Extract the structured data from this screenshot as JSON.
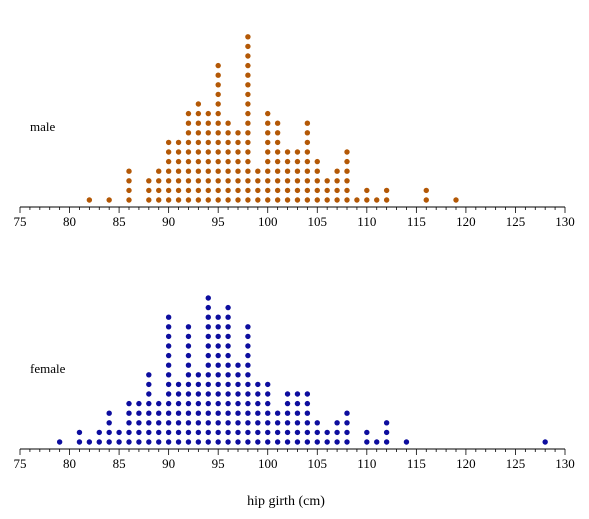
{
  "chart_data": {
    "type": "dot",
    "xlabel": "hip girth (cm)",
    "xlim": [
      75,
      130
    ],
    "xticks": [
      75,
      80,
      85,
      90,
      95,
      100,
      105,
      110,
      115,
      120,
      125,
      130
    ],
    "panels": [
      {
        "label": "male",
        "color": "#b35806",
        "dots": [
          {
            "x": 82,
            "count": 1
          },
          {
            "x": 84,
            "count": 1
          },
          {
            "x": 86,
            "count": 4
          },
          {
            "x": 88,
            "count": 3
          },
          {
            "x": 89,
            "count": 4
          },
          {
            "x": 90,
            "count": 7
          },
          {
            "x": 91,
            "count": 7
          },
          {
            "x": 92,
            "count": 10
          },
          {
            "x": 93,
            "count": 11
          },
          {
            "x": 94,
            "count": 10
          },
          {
            "x": 95,
            "count": 15
          },
          {
            "x": 96,
            "count": 9
          },
          {
            "x": 97,
            "count": 8
          },
          {
            "x": 98,
            "count": 18
          },
          {
            "x": 99,
            "count": 4
          },
          {
            "x": 100,
            "count": 10
          },
          {
            "x": 101,
            "count": 9
          },
          {
            "x": 102,
            "count": 6
          },
          {
            "x": 103,
            "count": 6
          },
          {
            "x": 104,
            "count": 9
          },
          {
            "x": 105,
            "count": 5
          },
          {
            "x": 106,
            "count": 3
          },
          {
            "x": 107,
            "count": 4
          },
          {
            "x": 108,
            "count": 6
          },
          {
            "x": 109,
            "count": 1
          },
          {
            "x": 110,
            "count": 2
          },
          {
            "x": 111,
            "count": 1
          },
          {
            "x": 112,
            "count": 2
          },
          {
            "x": 116,
            "count": 2
          },
          {
            "x": 119,
            "count": 1
          }
        ]
      },
      {
        "label": "female",
        "color": "#0d0d9e",
        "dots": [
          {
            "x": 79,
            "count": 1
          },
          {
            "x": 81,
            "count": 2
          },
          {
            "x": 82,
            "count": 1
          },
          {
            "x": 83,
            "count": 2
          },
          {
            "x": 84,
            "count": 4
          },
          {
            "x": 85,
            "count": 2
          },
          {
            "x": 86,
            "count": 5
          },
          {
            "x": 87,
            "count": 5
          },
          {
            "x": 88,
            "count": 8
          },
          {
            "x": 89,
            "count": 5
          },
          {
            "x": 90,
            "count": 14
          },
          {
            "x": 91,
            "count": 7
          },
          {
            "x": 92,
            "count": 13
          },
          {
            "x": 93,
            "count": 8
          },
          {
            "x": 94,
            "count": 16
          },
          {
            "x": 95,
            "count": 14
          },
          {
            "x": 96,
            "count": 15
          },
          {
            "x": 97,
            "count": 9
          },
          {
            "x": 98,
            "count": 13
          },
          {
            "x": 99,
            "count": 7
          },
          {
            "x": 100,
            "count": 7
          },
          {
            "x": 101,
            "count": 4
          },
          {
            "x": 102,
            "count": 6
          },
          {
            "x": 103,
            "count": 6
          },
          {
            "x": 104,
            "count": 6
          },
          {
            "x": 105,
            "count": 3
          },
          {
            "x": 106,
            "count": 2
          },
          {
            "x": 107,
            "count": 3
          },
          {
            "x": 108,
            "count": 4
          },
          {
            "x": 110,
            "count": 2
          },
          {
            "x": 111,
            "count": 1
          },
          {
            "x": 112,
            "count": 3
          },
          {
            "x": 114,
            "count": 1
          },
          {
            "x": 128,
            "count": 1
          }
        ]
      }
    ]
  }
}
